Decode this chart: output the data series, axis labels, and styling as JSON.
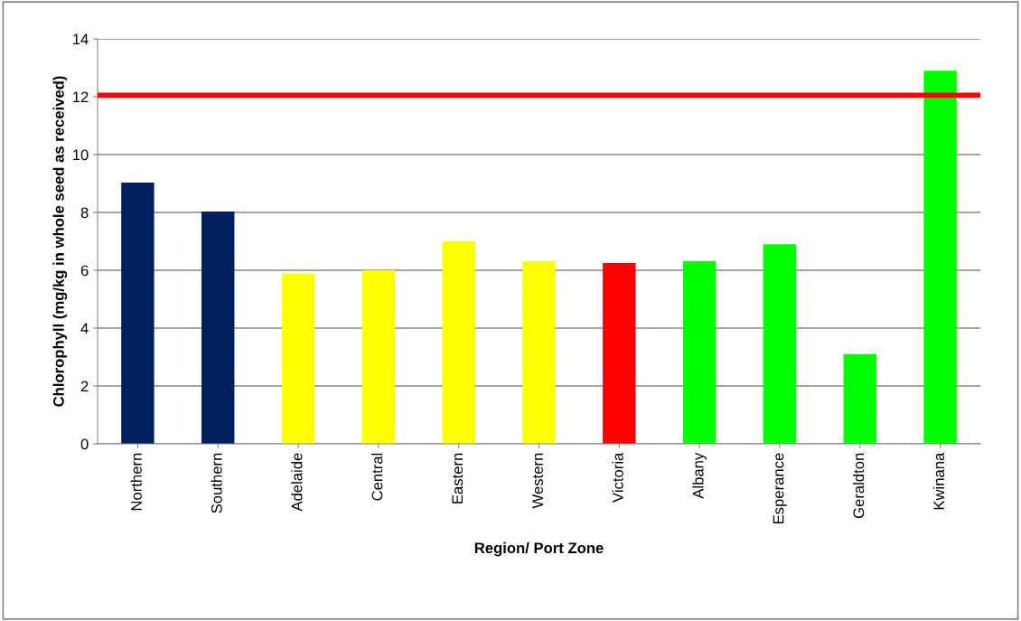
{
  "chart_data": {
    "type": "bar",
    "xlabel": "Region/ Port Zone",
    "ylabel": "Chlorophyll (mg/kg in whole seed as received)",
    "categories": [
      "Northern",
      "Southern",
      "Adelaide",
      "Central",
      "Eastern",
      "Western",
      "Victoria",
      "Albany",
      "Esperance",
      "Geraldton",
      "Kwinana"
    ],
    "values": [
      9.03,
      8.03,
      5.88,
      6.0,
      7.0,
      6.31,
      6.25,
      6.31,
      6.9,
      3.1,
      12.9
    ],
    "colors": [
      "#002060",
      "#002060",
      "#ffff00",
      "#ffff00",
      "#ffff00",
      "#ffff00",
      "#ff0000",
      "#00ff00",
      "#00ff00",
      "#00ff00",
      "#00ff00"
    ],
    "ylim": [
      0,
      14
    ],
    "yticks": [
      0,
      2,
      4,
      6,
      8,
      10,
      12,
      14
    ],
    "grid": "y",
    "ref_lines": [
      {
        "axis": "y",
        "value": 12.05,
        "color": "#ff0000"
      }
    ]
  }
}
